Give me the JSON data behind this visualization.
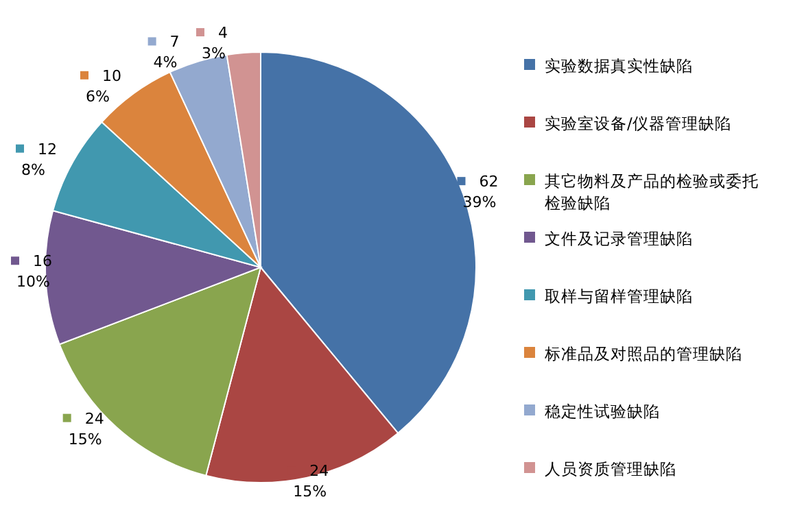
{
  "chart_data": {
    "type": "pie",
    "categories": [
      "实验数据真实性缺陷",
      "实验室设备/仪器管理缺陷",
      "其它物料及产品的检验或委托检验缺陷",
      "文件及记录管理缺陷",
      "取样与留样管理缺陷",
      "标准品及对照品的管理缺陷",
      "稳定性试验缺陷",
      "人员资质管理缺陷"
    ],
    "values": [
      62,
      24,
      24,
      16,
      12,
      10,
      7,
      4
    ],
    "colors": [
      "#4572a7",
      "#aa4643",
      "#89a54e",
      "#71588f",
      "#4198af",
      "#db843d",
      "#93a9cf",
      "#d19392"
    ],
    "value_labels": [
      "62\n39%",
      "24\n15%",
      "24\n15%",
      "16\n10%",
      "12\n8%",
      "10\n6%",
      "7\n4%",
      "4\n3%"
    ],
    "legend": "right"
  }
}
